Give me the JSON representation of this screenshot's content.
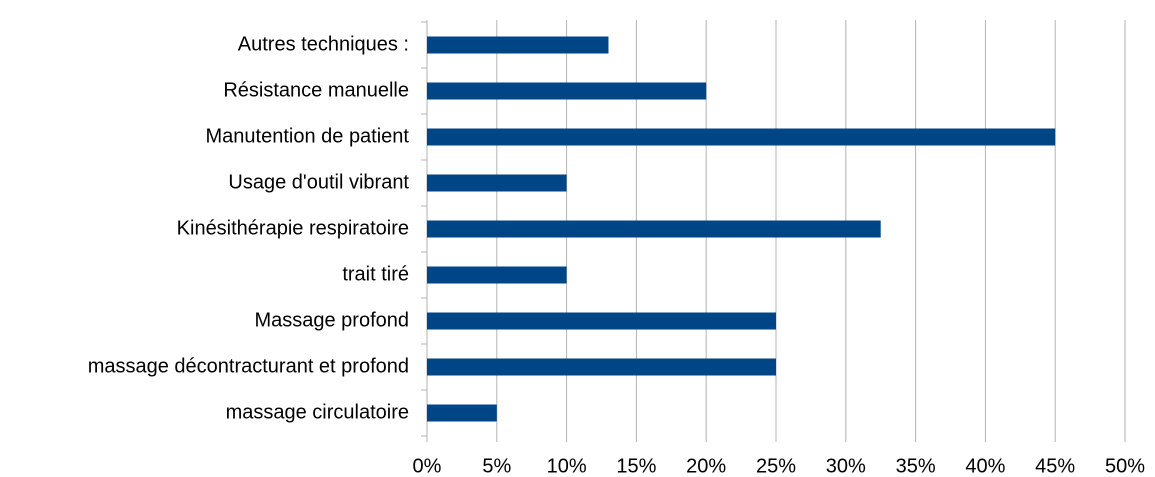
{
  "chart_data": {
    "type": "barh",
    "categories": [
      "Autres techniques :",
      "Résistance manuelle",
      "Manutention de patient",
      "Usage d'outil vibrant",
      "Kinésithérapie respiratoire",
      "trait tiré",
      "Massage profond",
      "massage décontracturant et profond",
      "massage circulatoire"
    ],
    "values": [
      13,
      20,
      45,
      10,
      32.5,
      10,
      25,
      25,
      5
    ],
    "color": "#004586",
    "xlim": [
      0,
      50
    ],
    "xticks": [
      {
        "value": 0,
        "label": "0%"
      },
      {
        "value": 5,
        "label": "5%"
      },
      {
        "value": 10,
        "label": "10%"
      },
      {
        "value": 15,
        "label": "15%"
      },
      {
        "value": 20,
        "label": "20%"
      },
      {
        "value": 25,
        "label": "25%"
      },
      {
        "value": 30,
        "label": "30%"
      },
      {
        "value": 35,
        "label": "35%"
      },
      {
        "value": 40,
        "label": "40%"
      },
      {
        "value": 45,
        "label": "45%"
      },
      {
        "value": 50,
        "label": "50%"
      }
    ],
    "grid": true
  }
}
